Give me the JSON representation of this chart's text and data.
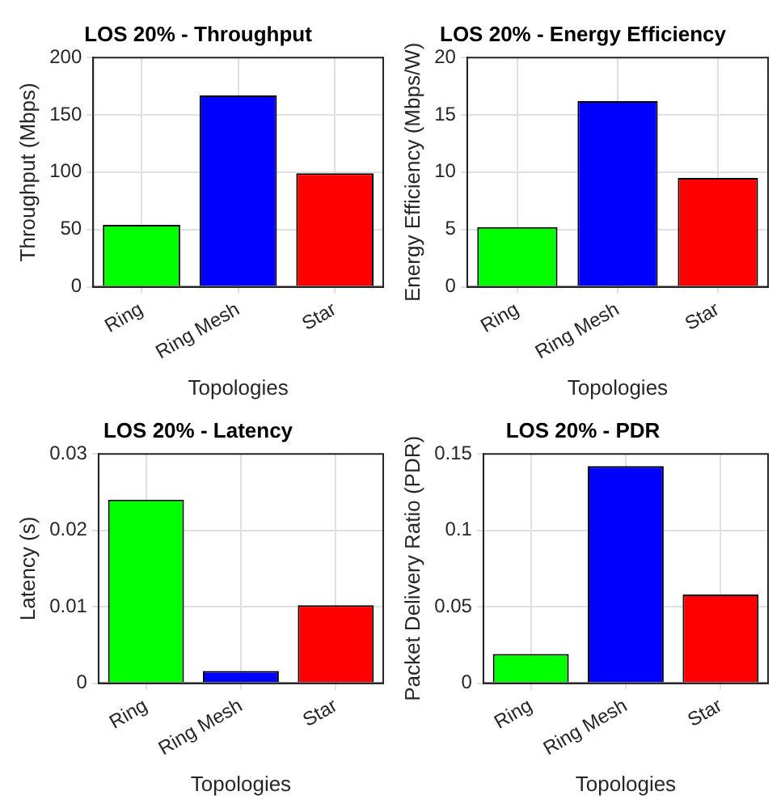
{
  "chart_data": [
    {
      "type": "bar",
      "title": "LOS 20% - Throughput",
      "xlabel": "Topologies",
      "ylabel": "Throughput (Mbps)",
      "categories": [
        "Ring",
        "Ring Mesh",
        "Star"
      ],
      "values": [
        54,
        167,
        99
      ],
      "colors": [
        "#00ff00",
        "#0000ff",
        "#ff0000"
      ],
      "ylim": [
        0,
        200
      ],
      "yticks": [
        0,
        50,
        100,
        150,
        200
      ],
      "grid": true,
      "legend": false
    },
    {
      "type": "bar",
      "title": "LOS 20% - Energy Efficiency",
      "xlabel": "Topologies",
      "ylabel": "Energy Efficiency (Mbps/W)",
      "categories": [
        "Ring",
        "Ring Mesh",
        "Star"
      ],
      "values": [
        5.2,
        16.2,
        9.5
      ],
      "colors": [
        "#00ff00",
        "#0000ff",
        "#ff0000"
      ],
      "ylim": [
        0,
        20
      ],
      "yticks": [
        0,
        5,
        10,
        15,
        20
      ],
      "grid": true,
      "legend": false
    },
    {
      "type": "bar",
      "title": "LOS 20% - Latency",
      "xlabel": "Topologies",
      "ylabel": "Latency (s)",
      "categories": [
        "Ring",
        "Ring Mesh",
        "Star"
      ],
      "values": [
        0.024,
        0.0016,
        0.0102
      ],
      "colors": [
        "#00ff00",
        "#0000ff",
        "#ff0000"
      ],
      "ylim": [
        0,
        0.03
      ],
      "yticks": [
        0,
        0.01,
        0.02,
        0.03
      ],
      "grid": true,
      "legend": false
    },
    {
      "type": "bar",
      "title": "LOS 20% - PDR",
      "xlabel": "Topologies",
      "ylabel": "Packet Delivery Ratio (PDR)",
      "categories": [
        "Ring",
        "Ring Mesh",
        "Star"
      ],
      "values": [
        0.019,
        0.142,
        0.058
      ],
      "colors": [
        "#00ff00",
        "#0000ff",
        "#ff0000"
      ],
      "ylim": [
        0,
        0.15
      ],
      "yticks": [
        0,
        0.05,
        0.1,
        0.15
      ],
      "grid": true,
      "legend": false
    }
  ]
}
